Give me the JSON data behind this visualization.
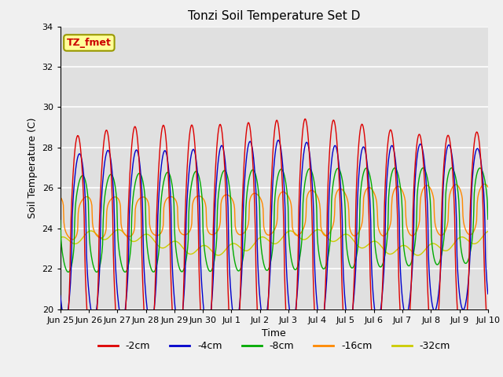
{
  "title": "Tonzi Soil Temperature Set D",
  "xlabel": "Time",
  "ylabel": "Soil Temperature (C)",
  "ylim": [
    20,
    34
  ],
  "tick_labels": [
    "Jun 25",
    "Jun 26",
    "Jun 27",
    "Jun 28",
    "Jun 29",
    "Jun 30",
    "Jul 1",
    "Jul 2",
    "Jul 3",
    "Jul 4",
    "Jul 5",
    "Jul 6",
    "Jul 7",
    "Jul 8",
    "Jul 9",
    "Jul 10"
  ],
  "annotation_text": "TZ_fmet",
  "annotation_color": "#cc0000",
  "annotation_bg": "#ffff99",
  "annotation_border": "#999900",
  "legend_labels": [
    "-2cm",
    "-4cm",
    "-8cm",
    "-16cm",
    "-32cm"
  ],
  "legend_colors": [
    "#dd0000",
    "#0000cc",
    "#00aa00",
    "#ff8800",
    "#cccc00"
  ],
  "fig_bg": "#f0f0f0",
  "axes_bg": "#e0e0e0",
  "grid_color": "#ffffff",
  "n_days": 15,
  "pts_per_day": 48,
  "base_temp": 23.0,
  "base_trend": 0.03,
  "amp_2cm": 5.8,
  "amp_4cm": 4.2,
  "amp_8cm": 2.3,
  "amp_16cm": 1.1,
  "amp_32cm": 0.25,
  "phase_2cm": 0.35,
  "phase_4cm": 0.4,
  "phase_8cm": 0.5,
  "phase_16cm": 0.62,
  "phase_32cm": 0.8,
  "base_2cm": 23.0,
  "base_4cm": 23.5,
  "base_8cm": 24.2,
  "base_16cm": 24.5,
  "base_32cm": 23.3
}
